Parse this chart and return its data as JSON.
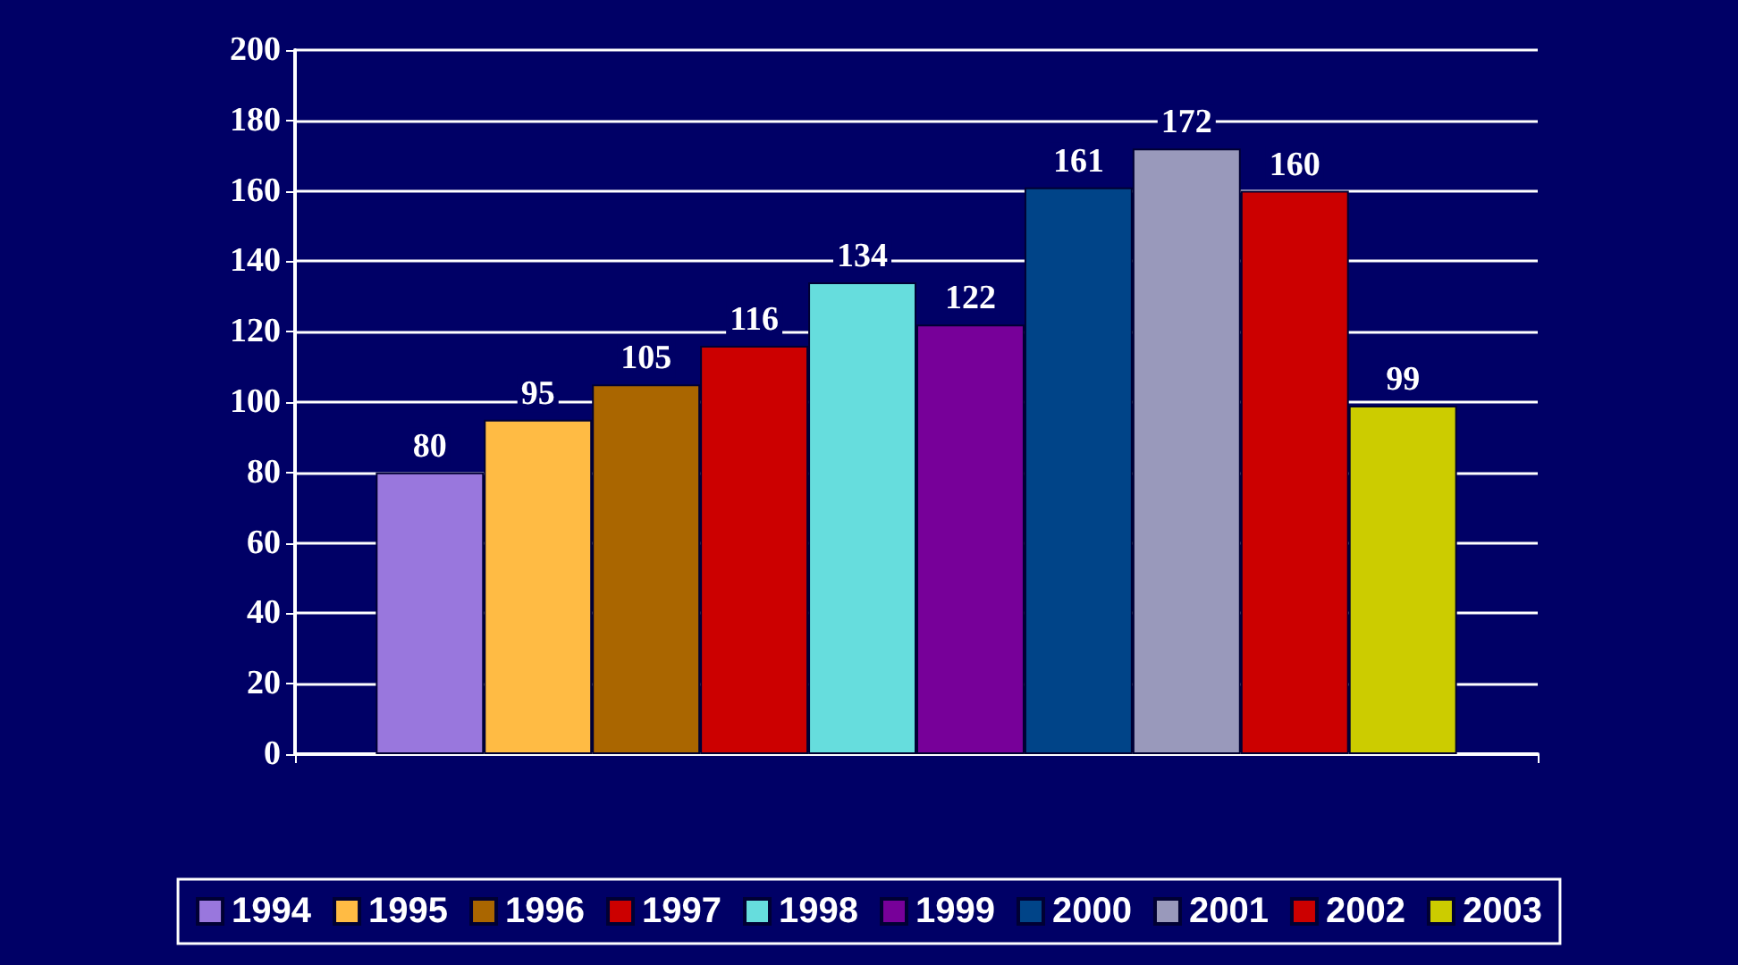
{
  "chart_data": {
    "type": "bar",
    "categories": [
      null
    ],
    "series": [
      {
        "name": "1994",
        "color": "#9977dd",
        "values": [
          80
        ]
      },
      {
        "name": "1995",
        "color": "#ffbb44",
        "values": [
          95
        ]
      },
      {
        "name": "1996",
        "color": "#aa6600",
        "values": [
          105
        ]
      },
      {
        "name": "1997",
        "color": "#cc0000",
        "values": [
          116
        ]
      },
      {
        "name": "1998",
        "color": "#66dddd",
        "values": [
          134
        ]
      },
      {
        "name": "1999",
        "color": "#770099",
        "values": [
          122
        ]
      },
      {
        "name": "2000",
        "color": "#004488",
        "values": [
          161
        ]
      },
      {
        "name": "2001",
        "color": "#9999bb",
        "values": [
          172
        ]
      },
      {
        "name": "2002",
        "color": "#cc0000",
        "values": [
          160
        ]
      },
      {
        "name": "2003",
        "color": "#cccc00",
        "values": [
          99
        ]
      }
    ],
    "ylim": [
      0,
      200
    ],
    "yticks": [
      0,
      20,
      40,
      60,
      80,
      100,
      120,
      140,
      160,
      180,
      200
    ],
    "grid": "y",
    "legend": "bottom",
    "data_labels": true
  }
}
